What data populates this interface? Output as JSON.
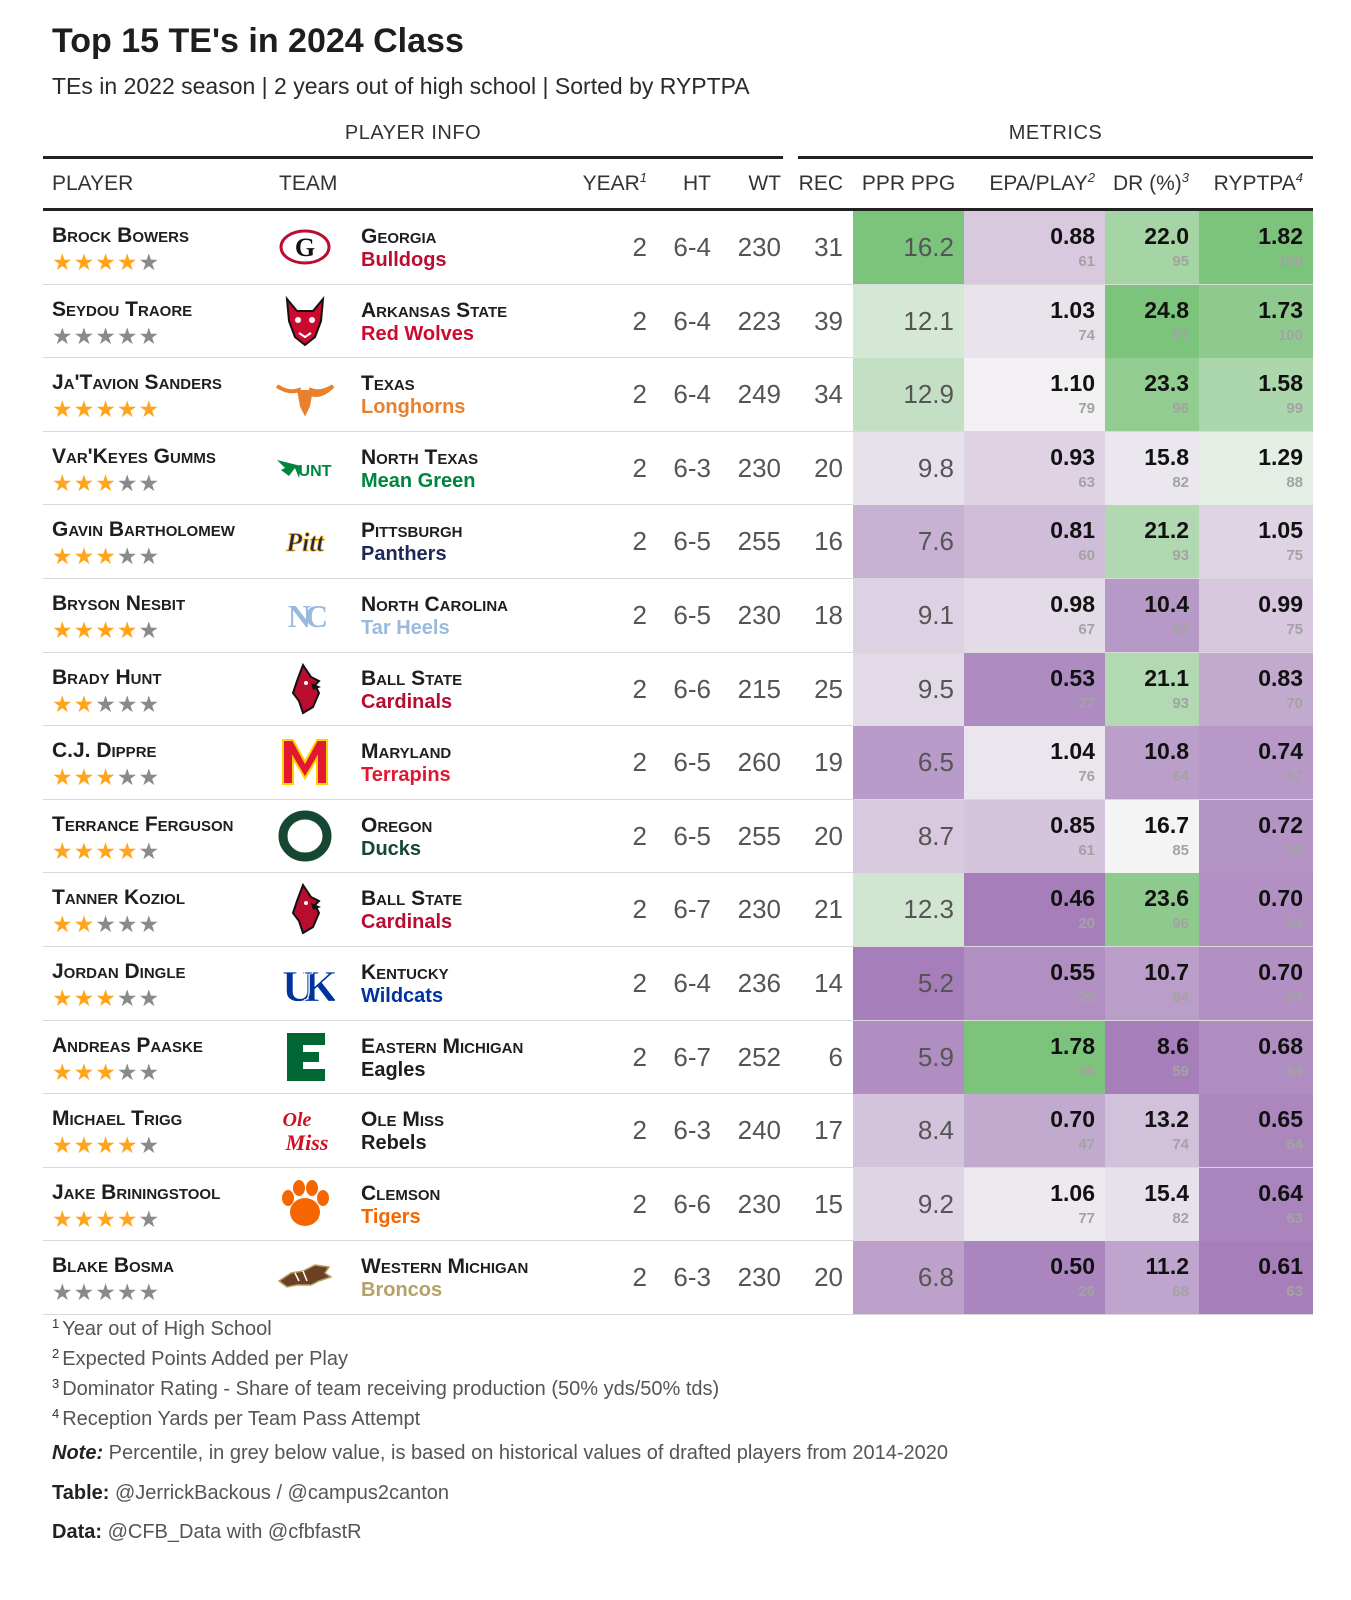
{
  "title": "Top 15 TE's in 2024 Class",
  "subtitle": "TEs in 2022 season | 2 years out of high school | Sorted by RYPTPA",
  "spanners": {
    "player_info": "PLAYER INFO",
    "metrics": "METRICS"
  },
  "columns": {
    "player": "PLAYER",
    "team": "TEAM",
    "year": "YEAR",
    "year_sup": "1",
    "ht": "HT",
    "wt": "WT",
    "rec": "REC",
    "ppr": "PPR PPG",
    "epa": "EPA/PLAY",
    "epa_sup": "2",
    "dr": "DR (%)",
    "dr_sup": "3",
    "ryptpa": "RYPTPA",
    "ryptpa_sup": "4"
  },
  "colors": {
    "scale_low": "#a67fba",
    "scale_mid": "#f4f4f4",
    "scale_high": "#7cc37b",
    "star_on": "#ffa41b",
    "star_off": "#8a8a8a",
    "percentile_text": "#a3a3a3"
  },
  "chart_data": {
    "type": "table",
    "rows": [
      {
        "player": "Brock Bowers",
        "stars": 4,
        "school": "Georgia",
        "mascot": "Bulldogs",
        "mascot_color": "#ba0c2f",
        "logo": "georgia-g-logo",
        "year": "2",
        "ht": "6-4",
        "wt": "230",
        "rec": "31",
        "ppr": "16.2",
        "epa": "0.88",
        "epa_pct": "61",
        "dr": "22.0",
        "dr_pct": "95",
        "ryptpa": "1.82",
        "ryptpa_pct": "100"
      },
      {
        "player": "Seydou Traore",
        "stars": 0,
        "school": "Arkansas State",
        "mascot": "Red Wolves",
        "mascot_color": "#cc092f",
        "logo": "red-wolf-logo",
        "year": "2",
        "ht": "6-4",
        "wt": "223",
        "rec": "39",
        "ppr": "12.1",
        "epa": "1.03",
        "epa_pct": "74",
        "dr": "24.8",
        "dr_pct": "97",
        "ryptpa": "1.73",
        "ryptpa_pct": "100"
      },
      {
        "player": "Ja'Tavion Sanders",
        "stars": 5,
        "school": "Texas",
        "mascot": "Longhorns",
        "mascot_color": "#e8802d",
        "logo": "longhorn-logo",
        "year": "2",
        "ht": "6-4",
        "wt": "249",
        "rec": "34",
        "ppr": "12.9",
        "epa": "1.10",
        "epa_pct": "79",
        "dr": "23.3",
        "dr_pct": "96",
        "ryptpa": "1.58",
        "ryptpa_pct": "99"
      },
      {
        "player": "Var'Keyes Gumms",
        "stars": 3,
        "school": "North Texas",
        "mascot": "Mean Green",
        "mascot_color": "#00853e",
        "logo": "unt-eagle-logo",
        "year": "2",
        "ht": "6-3",
        "wt": "230",
        "rec": "20",
        "ppr": "9.8",
        "epa": "0.93",
        "epa_pct": "63",
        "dr": "15.8",
        "dr_pct": "82",
        "ryptpa": "1.29",
        "ryptpa_pct": "88"
      },
      {
        "player": "Gavin Bartholomew",
        "stars": 3,
        "school": "Pittsburgh",
        "mascot": "Panthers",
        "mascot_color": "#1c2957",
        "logo": "pitt-script-logo",
        "year": "2",
        "ht": "6-5",
        "wt": "255",
        "rec": "16",
        "ppr": "7.6",
        "epa": "0.81",
        "epa_pct": "60",
        "dr": "21.2",
        "dr_pct": "93",
        "ryptpa": "1.05",
        "ryptpa_pct": "75"
      },
      {
        "player": "Bryson Nesbit",
        "stars": 4,
        "school": "North Carolina",
        "mascot": "Tar Heels",
        "mascot_color": "#99badd",
        "logo": "unc-nc-logo",
        "year": "2",
        "ht": "6-5",
        "wt": "230",
        "rec": "18",
        "ppr": "9.1",
        "epa": "0.98",
        "epa_pct": "67",
        "dr": "10.4",
        "dr_pct": "63",
        "ryptpa": "0.99",
        "ryptpa_pct": "75"
      },
      {
        "player": "Brady Hunt",
        "stars": 2,
        "school": "Ball State",
        "mascot": "Cardinals",
        "mascot_color": "#ba0c2f",
        "logo": "cardinal-logo",
        "year": "2",
        "ht": "6-6",
        "wt": "215",
        "rec": "25",
        "ppr": "9.5",
        "epa": "0.53",
        "epa_pct": "27",
        "dr": "21.1",
        "dr_pct": "93",
        "ryptpa": "0.83",
        "ryptpa_pct": "70"
      },
      {
        "player": "C.J. Dippre",
        "stars": 3,
        "school": "Maryland",
        "mascot": "Terrapins",
        "mascot_color": "#e21833",
        "logo": "maryland-m-logo",
        "year": "2",
        "ht": "6-5",
        "wt": "260",
        "rec": "19",
        "ppr": "6.5",
        "epa": "1.04",
        "epa_pct": "76",
        "dr": "10.8",
        "dr_pct": "64",
        "ryptpa": "0.74",
        "ryptpa_pct": "67"
      },
      {
        "player": "Terrance Ferguson",
        "stars": 4,
        "school": "Oregon",
        "mascot": "Ducks",
        "mascot_color": "#154733",
        "logo": "oregon-o-logo",
        "year": "2",
        "ht": "6-5",
        "wt": "255",
        "rec": "20",
        "ppr": "8.7",
        "epa": "0.85",
        "epa_pct": "61",
        "dr": "16.7",
        "dr_pct": "85",
        "ryptpa": "0.72",
        "ryptpa_pct": "66"
      },
      {
        "player": "Tanner Koziol",
        "stars": 2,
        "school": "Ball State",
        "mascot": "Cardinals",
        "mascot_color": "#ba0c2f",
        "logo": "cardinal-logo",
        "year": "2",
        "ht": "6-7",
        "wt": "230",
        "rec": "21",
        "ppr": "12.3",
        "epa": "0.46",
        "epa_pct": "20",
        "dr": "23.6",
        "dr_pct": "96",
        "ryptpa": "0.70",
        "ryptpa_pct": "64"
      },
      {
        "player": "Jordan Dingle",
        "stars": 3,
        "school": "Kentucky",
        "mascot": "Wildcats",
        "mascot_color": "#0033a0",
        "logo": "kentucky-uk-logo",
        "year": "2",
        "ht": "6-4",
        "wt": "236",
        "rec": "14",
        "ppr": "5.2",
        "epa": "0.55",
        "epa_pct": "29",
        "dr": "10.7",
        "dr_pct": "64",
        "ryptpa": "0.70",
        "ryptpa_pct": "64"
      },
      {
        "player": "Andreas Paaske",
        "stars": 3,
        "school": "Eastern Michigan",
        "mascot": "Eagles",
        "mascot_color": "#1e1e1e",
        "logo": "emu-e-logo",
        "year": "2",
        "ht": "6-7",
        "wt": "252",
        "rec": "6",
        "ppr": "5.9",
        "epa": "1.78",
        "epa_pct": "96",
        "dr": "8.6",
        "dr_pct": "59",
        "ryptpa": "0.68",
        "ryptpa_pct": "64"
      },
      {
        "player": "Michael Trigg",
        "stars": 4,
        "school": "Ole Miss",
        "mascot": "Rebels",
        "mascot_color": "#1e1e1e",
        "logo": "ole-miss-script-logo",
        "year": "2",
        "ht": "6-3",
        "wt": "240",
        "rec": "17",
        "ppr": "8.4",
        "epa": "0.70",
        "epa_pct": "47",
        "dr": "13.2",
        "dr_pct": "74",
        "ryptpa": "0.65",
        "ryptpa_pct": "64"
      },
      {
        "player": "Jake Briningstool",
        "stars": 4,
        "school": "Clemson",
        "mascot": "Tigers",
        "mascot_color": "#f56600",
        "logo": "clemson-paw-logo",
        "year": "2",
        "ht": "6-6",
        "wt": "230",
        "rec": "15",
        "ppr": "9.2",
        "epa": "1.06",
        "epa_pct": "77",
        "dr": "15.4",
        "dr_pct": "82",
        "ryptpa": "0.64",
        "ryptpa_pct": "63"
      },
      {
        "player": "Blake Bosma",
        "stars": 0,
        "school": "Western Michigan",
        "mascot": "Broncos",
        "mascot_color": "#b5a167",
        "logo": "bronco-logo",
        "year": "2",
        "ht": "6-3",
        "wt": "230",
        "rec": "20",
        "ppr": "6.8",
        "epa": "0.50",
        "epa_pct": "26",
        "dr": "11.2",
        "dr_pct": "68",
        "ryptpa": "0.61",
        "ryptpa_pct": "63"
      }
    ]
  },
  "footnotes": [
    {
      "sup": "1",
      "text": "Year out of High School"
    },
    {
      "sup": "2",
      "text": "Expected Points Added per Play"
    },
    {
      "sup": "3",
      "text": "Dominator Rating - Share of team receiving production (50% yds/50% tds)"
    },
    {
      "sup": "4",
      "text": "Reception Yards per Team Pass Attempt"
    }
  ],
  "note": {
    "label": "Note:",
    "text": "Percentile, in grey below value, is based on historical values of drafted players from 2014-2020"
  },
  "source_table": {
    "label": "Table:",
    "text": "@JerrickBackous / @campus2canton"
  },
  "source_data": {
    "label": "Data:",
    "text": "@CFB_Data with @cfbfastR"
  }
}
